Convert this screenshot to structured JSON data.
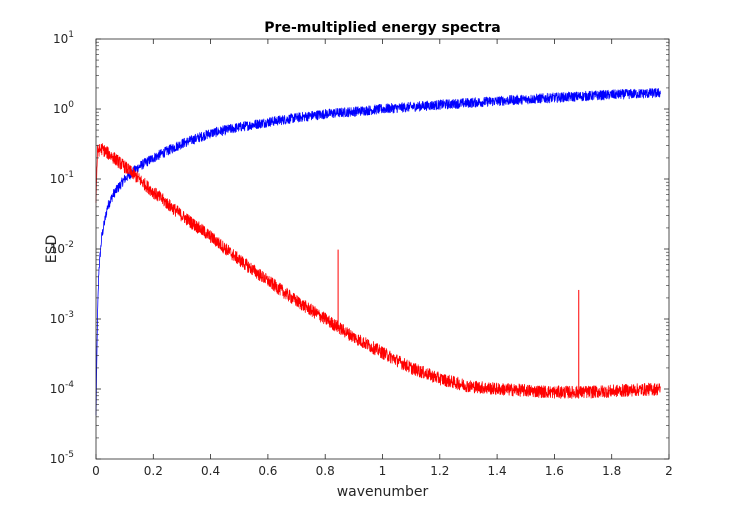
{
  "chart_data": {
    "type": "line",
    "title": "Pre-multiplied energy spectra",
    "xlabel": "wavenumber",
    "ylabel": "ESD",
    "xlim": [
      0,
      2
    ],
    "ylim": [
      1e-05,
      10
    ],
    "yscale": "log",
    "grid": false,
    "legend": "none",
    "x_ticks": [
      "0",
      "0.2",
      "0.4",
      "0.6",
      "0.8",
      "1",
      "1.2",
      "1.4",
      "1.6",
      "1.8",
      "2"
    ],
    "y_ticks": [
      {
        "base": "10",
        "exp": "-5"
      },
      {
        "base": "10",
        "exp": "-4"
      },
      {
        "base": "10",
        "exp": "-3"
      },
      {
        "base": "10",
        "exp": "-2"
      },
      {
        "base": "10",
        "exp": "-1"
      },
      {
        "base": "10",
        "exp": "0"
      },
      {
        "base": "10",
        "exp": "1"
      }
    ],
    "series": [
      {
        "color": "#0000ff",
        "x": [
          0.0,
          0.005,
          0.01,
          0.02,
          0.04,
          0.06,
          0.1,
          0.15,
          0.2,
          0.3,
          0.4,
          0.5,
          0.6,
          0.7,
          0.8,
          0.9,
          1.0,
          1.2,
          1.4,
          1.6,
          1.8,
          1.97
        ],
        "y": [
          4e-05,
          0.001,
          0.005,
          0.015,
          0.04,
          0.06,
          0.1,
          0.15,
          0.2,
          0.32,
          0.45,
          0.55,
          0.65,
          0.75,
          0.85,
          0.92,
          1.0,
          1.15,
          1.3,
          1.45,
          1.6,
          1.7
        ]
      },
      {
        "color": "#ff0000",
        "x": [
          0.0,
          0.005,
          0.02,
          0.05,
          0.1,
          0.15,
          0.2,
          0.3,
          0.4,
          0.5,
          0.6,
          0.7,
          0.8,
          0.9,
          1.0,
          1.1,
          1.2,
          1.3,
          1.4,
          1.5,
          1.6,
          1.7,
          1.8,
          1.9,
          1.97
        ],
        "y": [
          0.05,
          0.25,
          0.27,
          0.22,
          0.15,
          0.1,
          0.065,
          0.03,
          0.015,
          0.007,
          0.0035,
          0.0018,
          0.001,
          0.00055,
          0.00033,
          0.0002,
          0.00014,
          0.00011,
          0.0001,
          9.5e-05,
          9e-05,
          9e-05,
          9.3e-05,
          9.8e-05,
          0.0001
        ],
        "spikes": [
          {
            "x": 0.845,
            "y": 0.0098
          },
          {
            "x": 1.685,
            "y": 0.0026
          }
        ]
      }
    ]
  }
}
